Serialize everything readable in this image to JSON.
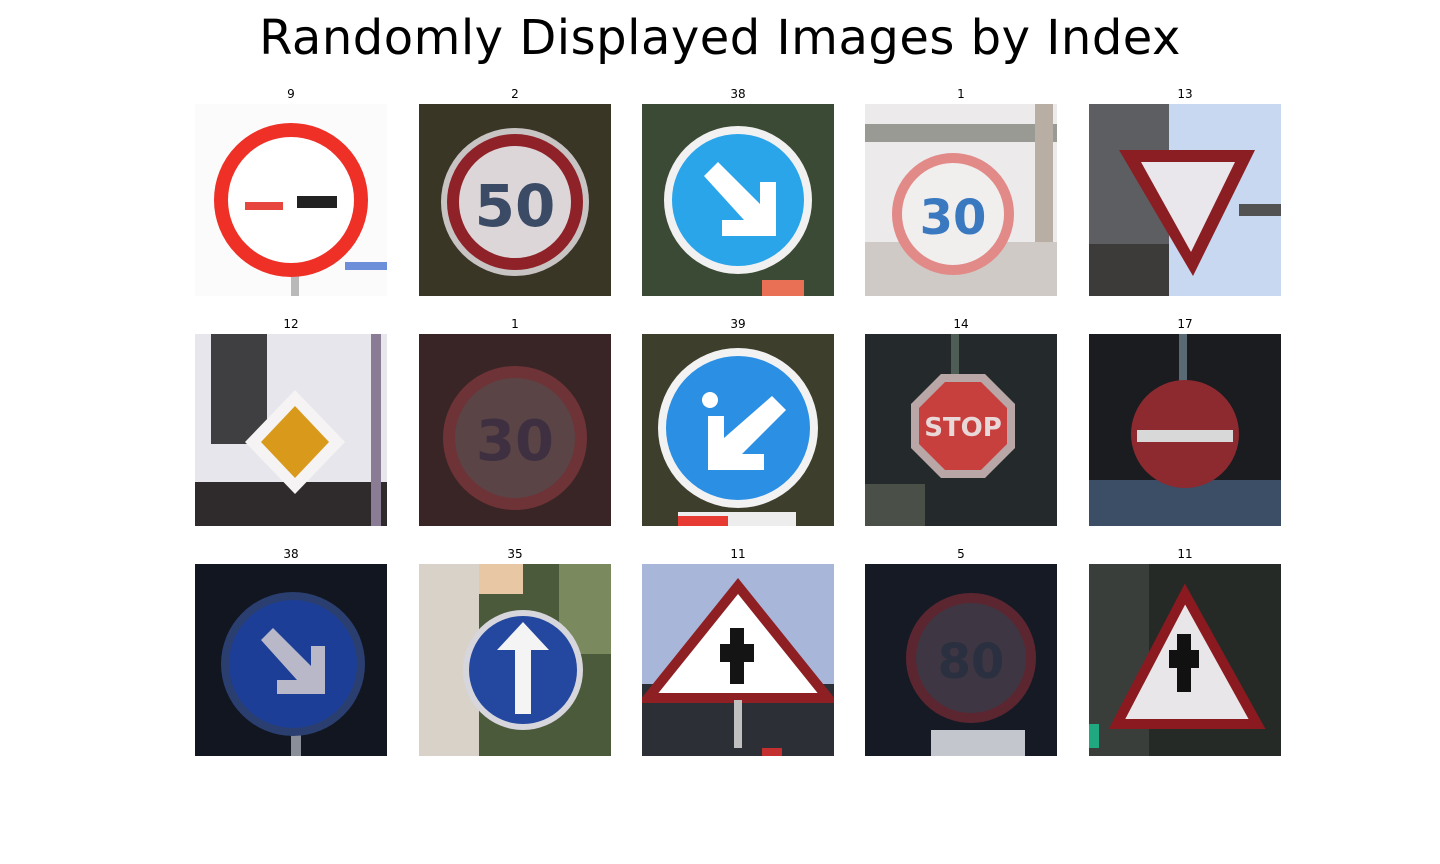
{
  "title": "Randomly Displayed Images by Index",
  "images": [
    {
      "label": "9",
      "sign": "no-overtaking"
    },
    {
      "label": "2",
      "sign": "speed-limit-50"
    },
    {
      "label": "38",
      "sign": "keep-right"
    },
    {
      "label": "1",
      "sign": "speed-limit-30"
    },
    {
      "label": "13",
      "sign": "yield"
    },
    {
      "label": "12",
      "sign": "priority-road"
    },
    {
      "label": "1",
      "sign": "speed-limit-30"
    },
    {
      "label": "39",
      "sign": "keep-left"
    },
    {
      "label": "14",
      "sign": "stop"
    },
    {
      "label": "17",
      "sign": "no-entry"
    },
    {
      "label": "38",
      "sign": "keep-right"
    },
    {
      "label": "35",
      "sign": "ahead-only"
    },
    {
      "label": "11",
      "sign": "right-of-way-intersection"
    },
    {
      "label": "5",
      "sign": "speed-limit-80"
    },
    {
      "label": "11",
      "sign": "right-of-way-intersection"
    }
  ],
  "colors": {
    "red": "#e03028",
    "blue": "#2a9be0",
    "darkblue": "#1e3d8c"
  }
}
